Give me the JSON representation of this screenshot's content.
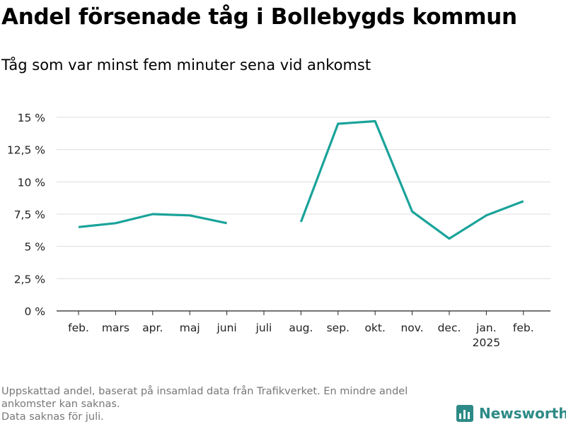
{
  "header": {
    "title": "Andel försenade tåg i Bollebygds kommun",
    "subtitle": "Tåg som var minst fem minuter sena vid ankomst"
  },
  "footnote": {
    "line1": "Uppskattad andel, baserat på insamlad data från Trafikverket. En mindre andel",
    "line2": "ankomster kan saknas.",
    "line3": "Data saknas för juli."
  },
  "brand": {
    "name": "Newsworthy",
    "icon": "newsworthy-logo-icon",
    "color": "#2d8a86"
  },
  "chart_data": {
    "type": "line",
    "title": "Andel försenade tåg i Bollebygds kommun",
    "subtitle": "Tåg som var minst fem minuter sena vid ankomst",
    "categories": [
      "feb.",
      "mars",
      "apr.",
      "maj",
      "juni",
      "juli",
      "aug.",
      "sep.",
      "okt.",
      "nov.",
      "dec.",
      "jan.",
      "feb."
    ],
    "category_sublabels": [
      "",
      "",
      "",
      "",
      "",
      "",
      "",
      "",
      "",
      "",
      "",
      "2025",
      ""
    ],
    "series": [
      {
        "values": [
          6.5,
          6.8,
          7.5,
          7.4,
          6.8,
          null,
          6.9,
          14.5,
          14.7,
          7.7,
          5.6,
          7.4,
          8.5
        ],
        "color": "#1aa39a"
      }
    ],
    "yticks": [
      0,
      2.5,
      5,
      7.5,
      10,
      12.5,
      15
    ],
    "ytick_labels": [
      "0 %",
      "2,5 %",
      "5 %",
      "7,5 %",
      "10 %",
      "12,5 %",
      "15 %"
    ],
    "ylim": [
      0,
      15
    ],
    "grid": true,
    "xlabel": "",
    "ylabel": ""
  }
}
